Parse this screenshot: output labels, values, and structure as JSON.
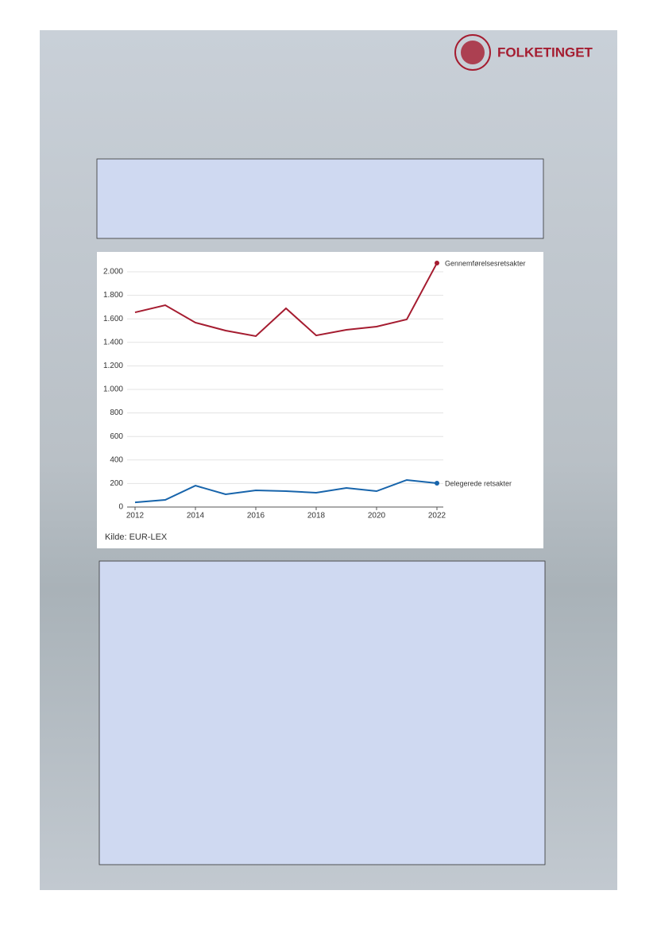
{
  "header": {
    "logo": "FOLKETINGET"
  },
  "chart_data": {
    "type": "line",
    "x": [
      2012,
      2013,
      2014,
      2015,
      2016,
      2017,
      2018,
      2019,
      2020,
      2021,
      2022
    ],
    "series": [
      {
        "name": "Gennemførelsesretsakter",
        "color": "#a51c30",
        "values": [
          1655,
          1716,
          1568,
          1500,
          1453,
          1689,
          1459,
          1507,
          1534,
          1595,
          2074
        ]
      },
      {
        "name": "Delegerede retsakter",
        "color": "#1764ab",
        "values": [
          40,
          61,
          182,
          108,
          142,
          135,
          122,
          162,
          135,
          230,
          203
        ]
      }
    ],
    "xlim": [
      2012,
      2022
    ],
    "xticks": [
      2012,
      2014,
      2016,
      2018,
      2020,
      2022
    ],
    "ylim": [
      0,
      2000
    ],
    "yticks": [
      0,
      200,
      400,
      600,
      800,
      {
        "value": 1000,
        "label": "1.000"
      },
      {
        "value": 1200,
        "label": "1.200"
      },
      {
        "value": 1400,
        "label": "1.400"
      },
      {
        "value": 1600,
        "label": "1.600"
      },
      {
        "value": 1800,
        "label": "1.800"
      },
      {
        "value": 2000,
        "label": "2.000"
      }
    ],
    "grid": true,
    "source": "Kilde: EUR-LEX"
  }
}
